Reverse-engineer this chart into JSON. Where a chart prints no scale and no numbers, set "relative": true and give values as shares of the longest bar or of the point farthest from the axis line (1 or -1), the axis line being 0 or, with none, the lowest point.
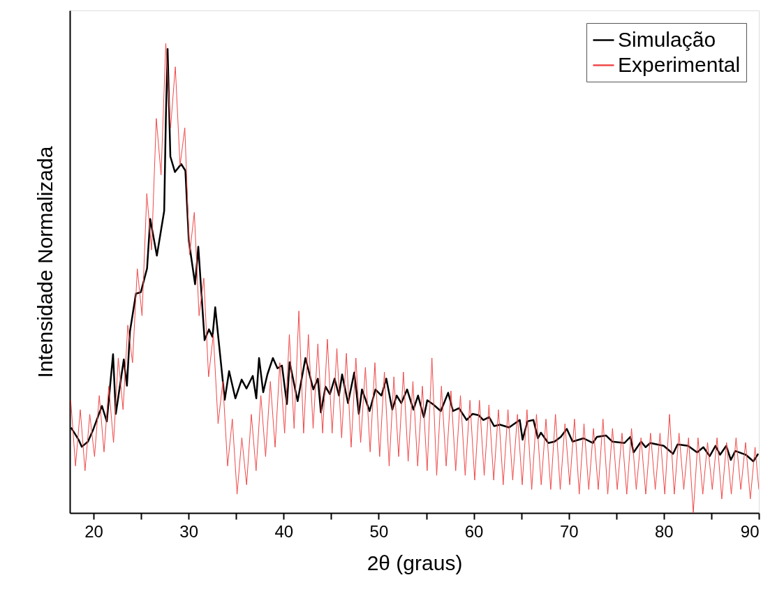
{
  "chart_data": {
    "type": "line",
    "xlabel": "2θ (graus)",
    "ylabel": "Intensidade Normalizada",
    "relative": true,
    "xlim": [
      17.5,
      90
    ],
    "xticks": [
      20,
      {
        "value": 25,
        "label": null
      },
      30,
      {
        "value": 35,
        "label": null
      },
      40,
      {
        "value": 45,
        "label": null
      },
      50,
      {
        "value": 55,
        "label": null
      },
      60,
      {
        "value": 65,
        "label": null
      },
      70,
      {
        "value": 75,
        "label": null
      },
      80,
      {
        "value": 85,
        "label": null
      },
      90
    ],
    "legend": "top right",
    "grid": false,
    "line_style": "solid",
    "marker": "none",
    "series": [
      {
        "name": "Simulação",
        "color": "#000000",
        "x": [
          17.63,
          18.45,
          18.76,
          19.41,
          19.93,
          20.88,
          21.39,
          22.05,
          22.34,
          23.18,
          23.51,
          23.83,
          24.46,
          24.97,
          25.63,
          25.96,
          26.66,
          27.43,
          27.61,
          27.79,
          28.08,
          28.56,
          29.22,
          29.66,
          30.02,
          30.68,
          31.02,
          31.68,
          32.14,
          32.51,
          32.8,
          33.8,
          34.26,
          34.92,
          35.58,
          36.09,
          36.75,
          37.12,
          37.41,
          37.85,
          38.29,
          38.87,
          39.35,
          39.82,
          40.34,
          40.63,
          41.47,
          42.29,
          43.12,
          43.6,
          43.92,
          44.4,
          44.87,
          45.36,
          45.82,
          46.15,
          46.77,
          47.43,
          47.91,
          48.24,
          49.04,
          49.66,
          50.29,
          50.8,
          51.43,
          51.89,
          52.38,
          52.99,
          53.65,
          54.14,
          54.75,
          55.11,
          55.74,
          56.53,
          57.31,
          57.82,
          58.45,
          59.25,
          59.87,
          60.53,
          61.01,
          61.62,
          62.14,
          62.76,
          63.72,
          64.84,
          65.14,
          65.65,
          66.28,
          66.75,
          67.07,
          67.84,
          68.5,
          69.16,
          69.79,
          70.4,
          71.55,
          72.52,
          72.96,
          73.91,
          74.57,
          75.86,
          76.47,
          76.82,
          77.61,
          78.08,
          78.57,
          79.99,
          80.97,
          81.45,
          82.55,
          83.5,
          84.16,
          84.82,
          85.44,
          85.92,
          86.57,
          87.05,
          87.52,
          88.62,
          89.42,
          89.93
        ],
        "values": [
          0.182,
          0.155,
          0.141,
          0.152,
          0.176,
          0.228,
          0.195,
          0.338,
          0.211,
          0.327,
          0.271,
          0.387,
          0.467,
          0.47,
          0.521,
          0.626,
          0.548,
          0.643,
          0.845,
          0.988,
          0.759,
          0.726,
          0.743,
          0.729,
          0.58,
          0.487,
          0.567,
          0.368,
          0.391,
          0.375,
          0.438,
          0.241,
          0.302,
          0.244,
          0.284,
          0.265,
          0.292,
          0.244,
          0.33,
          0.257,
          0.295,
          0.33,
          0.308,
          0.314,
          0.232,
          0.321,
          0.238,
          0.33,
          0.263,
          0.286,
          0.214,
          0.269,
          0.253,
          0.286,
          0.25,
          0.295,
          0.234,
          0.299,
          0.211,
          0.263,
          0.217,
          0.263,
          0.25,
          0.286,
          0.22,
          0.25,
          0.234,
          0.263,
          0.22,
          0.25,
          0.204,
          0.24,
          0.231,
          0.217,
          0.256,
          0.217,
          0.223,
          0.198,
          0.211,
          0.208,
          0.198,
          0.204,
          0.185,
          0.188,
          0.182,
          0.198,
          0.156,
          0.195,
          0.198,
          0.159,
          0.171,
          0.149,
          0.152,
          0.162,
          0.179,
          0.152,
          0.159,
          0.149,
          0.162,
          0.165,
          0.152,
          0.149,
          0.162,
          0.129,
          0.152,
          0.14,
          0.149,
          0.143,
          0.126,
          0.146,
          0.143,
          0.129,
          0.14,
          0.121,
          0.143,
          0.124,
          0.143,
          0.113,
          0.132,
          0.124,
          0.11,
          0.126
        ]
      },
      {
        "name": "Experimental",
        "color": "#f04848",
        "x": [
          17.6,
          18.1,
          18.6,
          19.1,
          19.6,
          20.1,
          20.6,
          21.1,
          21.6,
          22.1,
          22.6,
          23.1,
          23.6,
          24.1,
          24.6,
          25.1,
          25.6,
          26.1,
          26.6,
          27.1,
          27.6,
          28.1,
          28.6,
          29.1,
          29.6,
          30.1,
          30.6,
          31.1,
          31.6,
          32.1,
          32.6,
          33.1,
          33.6,
          34.1,
          34.6,
          35.1,
          35.6,
          36.1,
          36.6,
          37.1,
          37.6,
          38.1,
          38.6,
          39.1,
          39.6,
          40.1,
          40.6,
          41.1,
          41.6,
          42.1,
          42.6,
          43.1,
          43.6,
          44.1,
          44.6,
          45.1,
          45.6,
          46.1,
          46.6,
          47.1,
          47.6,
          48.1,
          48.6,
          49.1,
          49.6,
          50.1,
          50.6,
          51.1,
          51.6,
          52.1,
          52.6,
          53.1,
          53.6,
          54.1,
          54.6,
          55.1,
          55.6,
          56.1,
          56.6,
          57.1,
          57.6,
          58.1,
          58.6,
          59.1,
          59.6,
          60.1,
          60.6,
          61.1,
          61.6,
          62.1,
          62.6,
          63.1,
          63.6,
          64.1,
          64.6,
          65.1,
          65.6,
          66.1,
          66.6,
          67.1,
          67.6,
          68.1,
          68.6,
          69.1,
          69.6,
          70.1,
          70.6,
          71.1,
          71.6,
          72.1,
          72.6,
          73.1,
          73.6,
          74.1,
          74.6,
          75.1,
          75.6,
          76.1,
          76.6,
          77.1,
          77.6,
          78.1,
          78.6,
          79.1,
          79.6,
          80.1,
          80.6,
          81.1,
          81.6,
          82.1,
          82.6,
          83.1,
          83.6,
          84.1,
          84.6,
          85.1,
          85.6,
          86.1,
          86.6,
          87.1,
          87.6,
          88.1,
          88.6,
          89.1,
          89.6,
          90.0
        ],
        "values": [
          0.24,
          0.1,
          0.22,
          0.09,
          0.21,
          0.12,
          0.25,
          0.13,
          0.27,
          0.15,
          0.33,
          0.22,
          0.4,
          0.32,
          0.52,
          0.42,
          0.68,
          0.56,
          0.84,
          0.72,
          1.0,
          0.82,
          0.95,
          0.74,
          0.82,
          0.55,
          0.64,
          0.42,
          0.5,
          0.29,
          0.38,
          0.19,
          0.28,
          0.1,
          0.2,
          0.04,
          0.16,
          0.06,
          0.21,
          0.09,
          0.25,
          0.12,
          0.28,
          0.14,
          0.32,
          0.17,
          0.38,
          0.18,
          0.43,
          0.17,
          0.38,
          0.18,
          0.36,
          0.17,
          0.37,
          0.17,
          0.35,
          0.16,
          0.34,
          0.14,
          0.33,
          0.15,
          0.31,
          0.13,
          0.32,
          0.12,
          0.3,
          0.1,
          0.29,
          0.12,
          0.3,
          0.11,
          0.28,
          0.1,
          0.27,
          0.09,
          0.33,
          0.08,
          0.27,
          0.1,
          0.26,
          0.09,
          0.25,
          0.08,
          0.24,
          0.07,
          0.24,
          0.08,
          0.23,
          0.07,
          0.22,
          0.06,
          0.22,
          0.07,
          0.21,
          0.06,
          0.22,
          0.05,
          0.21,
          0.06,
          0.2,
          0.05,
          0.21,
          0.05,
          0.19,
          0.06,
          0.2,
          0.04,
          0.19,
          0.05,
          0.18,
          0.05,
          0.2,
          0.04,
          0.18,
          0.05,
          0.17,
          0.04,
          0.18,
          0.05,
          0.16,
          0.04,
          0.17,
          0.05,
          0.17,
          0.04,
          0.21,
          0.04,
          0.17,
          0.05,
          0.16,
          0.0,
          0.16,
          0.04,
          0.15,
          0.05,
          0.16,
          0.03,
          0.15,
          0.04,
          0.16,
          0.05,
          0.15,
          0.03,
          0.14,
          0.05
        ]
      }
    ]
  }
}
